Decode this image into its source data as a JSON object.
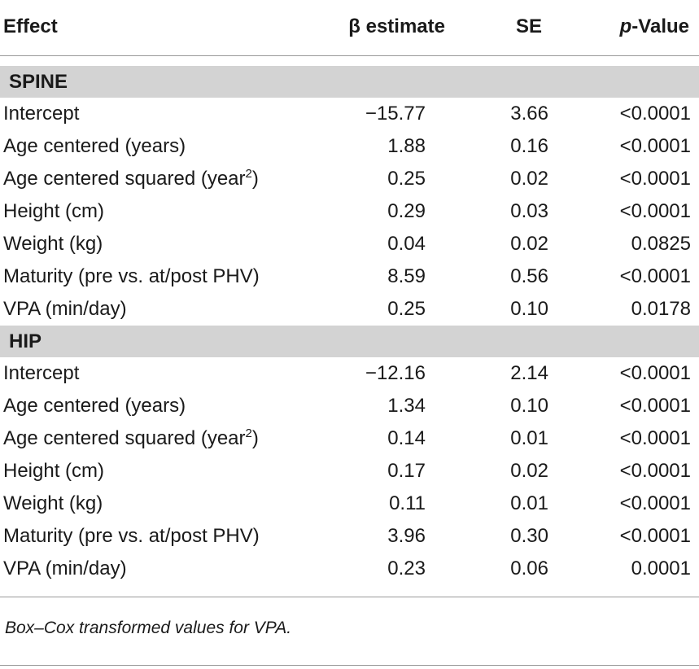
{
  "header": {
    "effect": "Effect",
    "beta": "β estimate",
    "se": "SE",
    "p_italic": "p",
    "p_rest": "-Value"
  },
  "sections": [
    {
      "label": "SPINE",
      "rows": [
        {
          "effect": "Intercept",
          "beta": "−15.77",
          "se": "3.66",
          "p": "<0.0001"
        },
        {
          "effect": "Age centered (years)",
          "beta": "1.88",
          "se": "0.16",
          "p": "<0.0001"
        },
        {
          "effect": "Age centered squared (year",
          "sup": "2",
          "close": ")",
          "beta": "0.25",
          "se": "0.02",
          "p": "<0.0001"
        },
        {
          "effect": "Height (cm)",
          "beta": "0.29",
          "se": "0.03",
          "p": "<0.0001"
        },
        {
          "effect": "Weight (kg)",
          "beta": "0.04",
          "se": "0.02",
          "p": "0.0825"
        },
        {
          "effect": "Maturity (pre vs. at/post PHV)",
          "beta": "8.59",
          "se": "0.56",
          "p": "<0.0001"
        },
        {
          "effect": "VPA (min/day)",
          "beta": "0.25",
          "se": "0.10",
          "p": "0.0178"
        }
      ]
    },
    {
      "label": "HIP",
      "rows": [
        {
          "effect": "Intercept",
          "beta": "−12.16",
          "se": "2.14",
          "p": "<0.0001"
        },
        {
          "effect": "Age centered (years)",
          "beta": "1.34",
          "se": "0.10",
          "p": "<0.0001"
        },
        {
          "effect": "Age centered squared (year",
          "sup": "2",
          "close": ")",
          "beta": "0.14",
          "se": "0.01",
          "p": "<0.0001"
        },
        {
          "effect": "Height (cm)",
          "beta": "0.17",
          "se": "0.02",
          "p": "<0.0001"
        },
        {
          "effect": "Weight (kg)",
          "beta": "0.11",
          "se": "0.01",
          "p": "<0.0001"
        },
        {
          "effect": "Maturity (pre vs. at/post PHV)",
          "beta": "3.96",
          "se": "0.30",
          "p": "<0.0001"
        },
        {
          "effect": "VPA (min/day)",
          "beta": "0.23",
          "se": "0.06",
          "p": "0.0001"
        }
      ]
    }
  ],
  "footnote": "Box–Cox transformed values for VPA."
}
